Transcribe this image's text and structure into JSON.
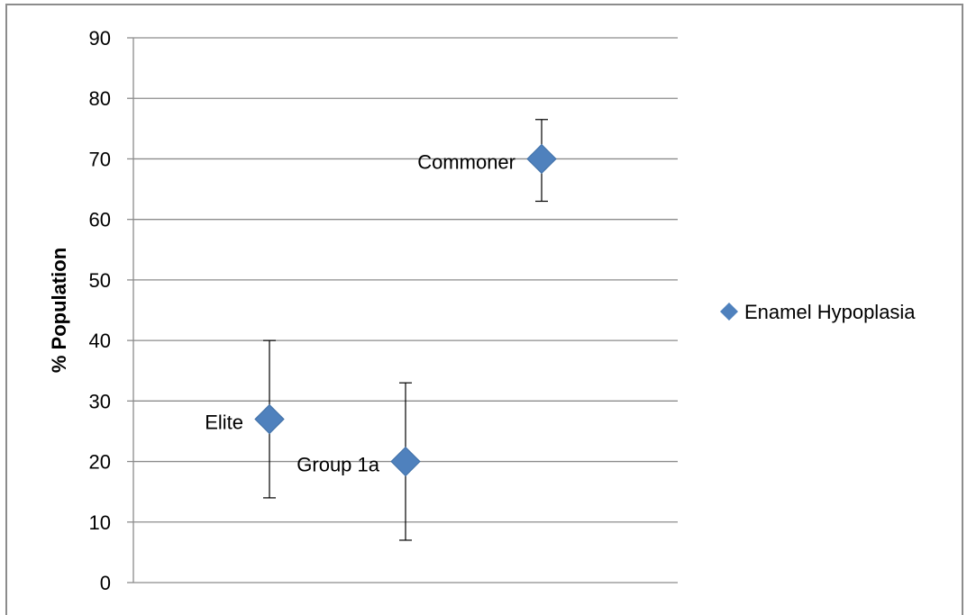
{
  "chart_data": {
    "type": "scatter",
    "title": "",
    "xlabel": "",
    "ylabel": "% Population",
    "ylim": [
      0,
      90
    ],
    "yticks": [
      0,
      10,
      20,
      30,
      40,
      50,
      60,
      70,
      80,
      90
    ],
    "grid": "horizontal",
    "legend_position": "right",
    "series": [
      {
        "name": "Enamel Hypoplasia",
        "color": "#4f81bd",
        "marker": "diamond",
        "points": [
          {
            "label": "Elite",
            "x": 1,
            "y": 27,
            "err_low": 14,
            "err_high": 40
          },
          {
            "label": "Group 1a",
            "x": 2,
            "y": 20,
            "err_low": 7,
            "err_high": 33
          },
          {
            "label": "Commoner",
            "x": 3,
            "y": 70,
            "err_low": 63,
            "err_high": 76.5
          }
        ]
      }
    ],
    "xlim": [
      0,
      4
    ]
  }
}
